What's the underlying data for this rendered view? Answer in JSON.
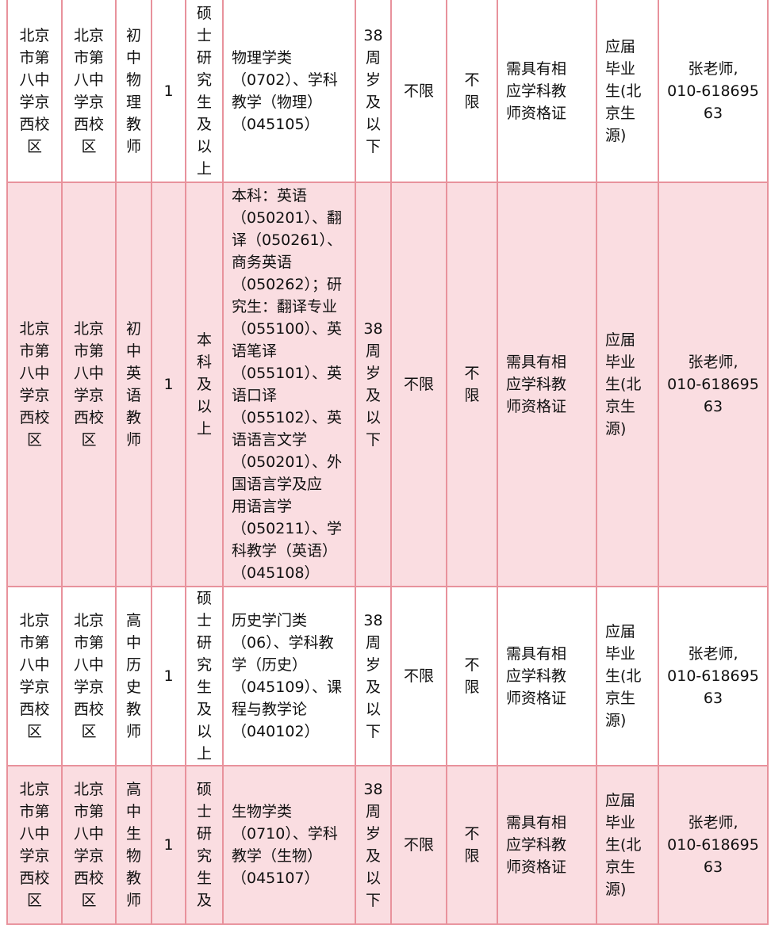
{
  "rows": [
    {
      "school": "北京\n市第\n八中\n学京\n西校\n区",
      "unit": "北京\n市第\n八中\n学京\n西校\n区",
      "position": "初\n中\n物\n理\n教\n师",
      "count": "1",
      "education": "硕\n士\n研\n究\n生\n及\n以\n上",
      "major": "物理学类\n（0702）、学科\n教学（物理）\n（045105）",
      "age": "38\n周\n岁\n及\n以\n下",
      "col8": "不限",
      "col9": "不\n限",
      "cert": "需具有相\n应学科教\n师资格证",
      "source": "应届\n毕业\n生(北\n京生\n源)",
      "contact": "张老师,\n010-618695\n63"
    },
    {
      "school": "北京\n市第\n八中\n学京\n西校\n区",
      "unit": "北京\n市第\n八中\n学京\n西校\n区",
      "position": "初\n中\n英\n语\n教\n师",
      "count": "1",
      "education": "本\n科\n及\n以\n上",
      "major": "本科：英语\n（050201）、翻\n译（050261）、\n商务英语\n（050262）；研\n究生：翻译专业\n（055100）、英\n语笔译\n（055101）、英\n语口译\n（055102）、英\n语语言文学\n（050201）、外\n国语言学及应\n用语言学\n（050211）、学\n科教学（英语）\n（045108）",
      "age": "38\n周\n岁\n及\n以\n下",
      "col8": "不限",
      "col9": "不\n限",
      "cert": "需具有相\n应学科教\n师资格证",
      "source": "应届\n毕业\n生(北\n京生\n源)",
      "contact": "张老师,\n010-618695\n63"
    },
    {
      "school": "北京\n市第\n八中\n学京\n西校\n区",
      "unit": "北京\n市第\n八中\n学京\n西校\n区",
      "position": "高\n中\n历\n史\n教\n师",
      "count": "1",
      "education": "硕\n士\n研\n究\n生\n及\n以\n上",
      "major": "历史学门类\n（06）、学科教\n学（历史）\n（045109）、课\n程与教学论\n（040102）",
      "age": "38\n周\n岁\n及\n以\n下",
      "col8": "不限",
      "col9": "不\n限",
      "cert": "需具有相\n应学科教\n师资格证",
      "source": "应届\n毕业\n生(北\n京生\n源)",
      "contact": "张老师,\n010-618695\n63"
    },
    {
      "school": "北京\n市第\n八中\n学京\n西校\n区",
      "unit": "北京\n市第\n八中\n学京\n西校\n区",
      "position": "高\n中\n生\n物\n教\n师",
      "count": "1",
      "education": "硕\n士\n研\n究\n生\n及",
      "major": "生物学类\n（0710）、学科\n教学（生物）\n（045107）",
      "age": "38\n周\n岁\n及\n以\n下",
      "col8": "不限",
      "col9": "不\n限",
      "cert": "需具有相\n应学科教\n师资格证",
      "source": "应届\n毕业\n生(北\n京生\n源)",
      "contact": "张老师,\n010-618695\n63"
    }
  ]
}
